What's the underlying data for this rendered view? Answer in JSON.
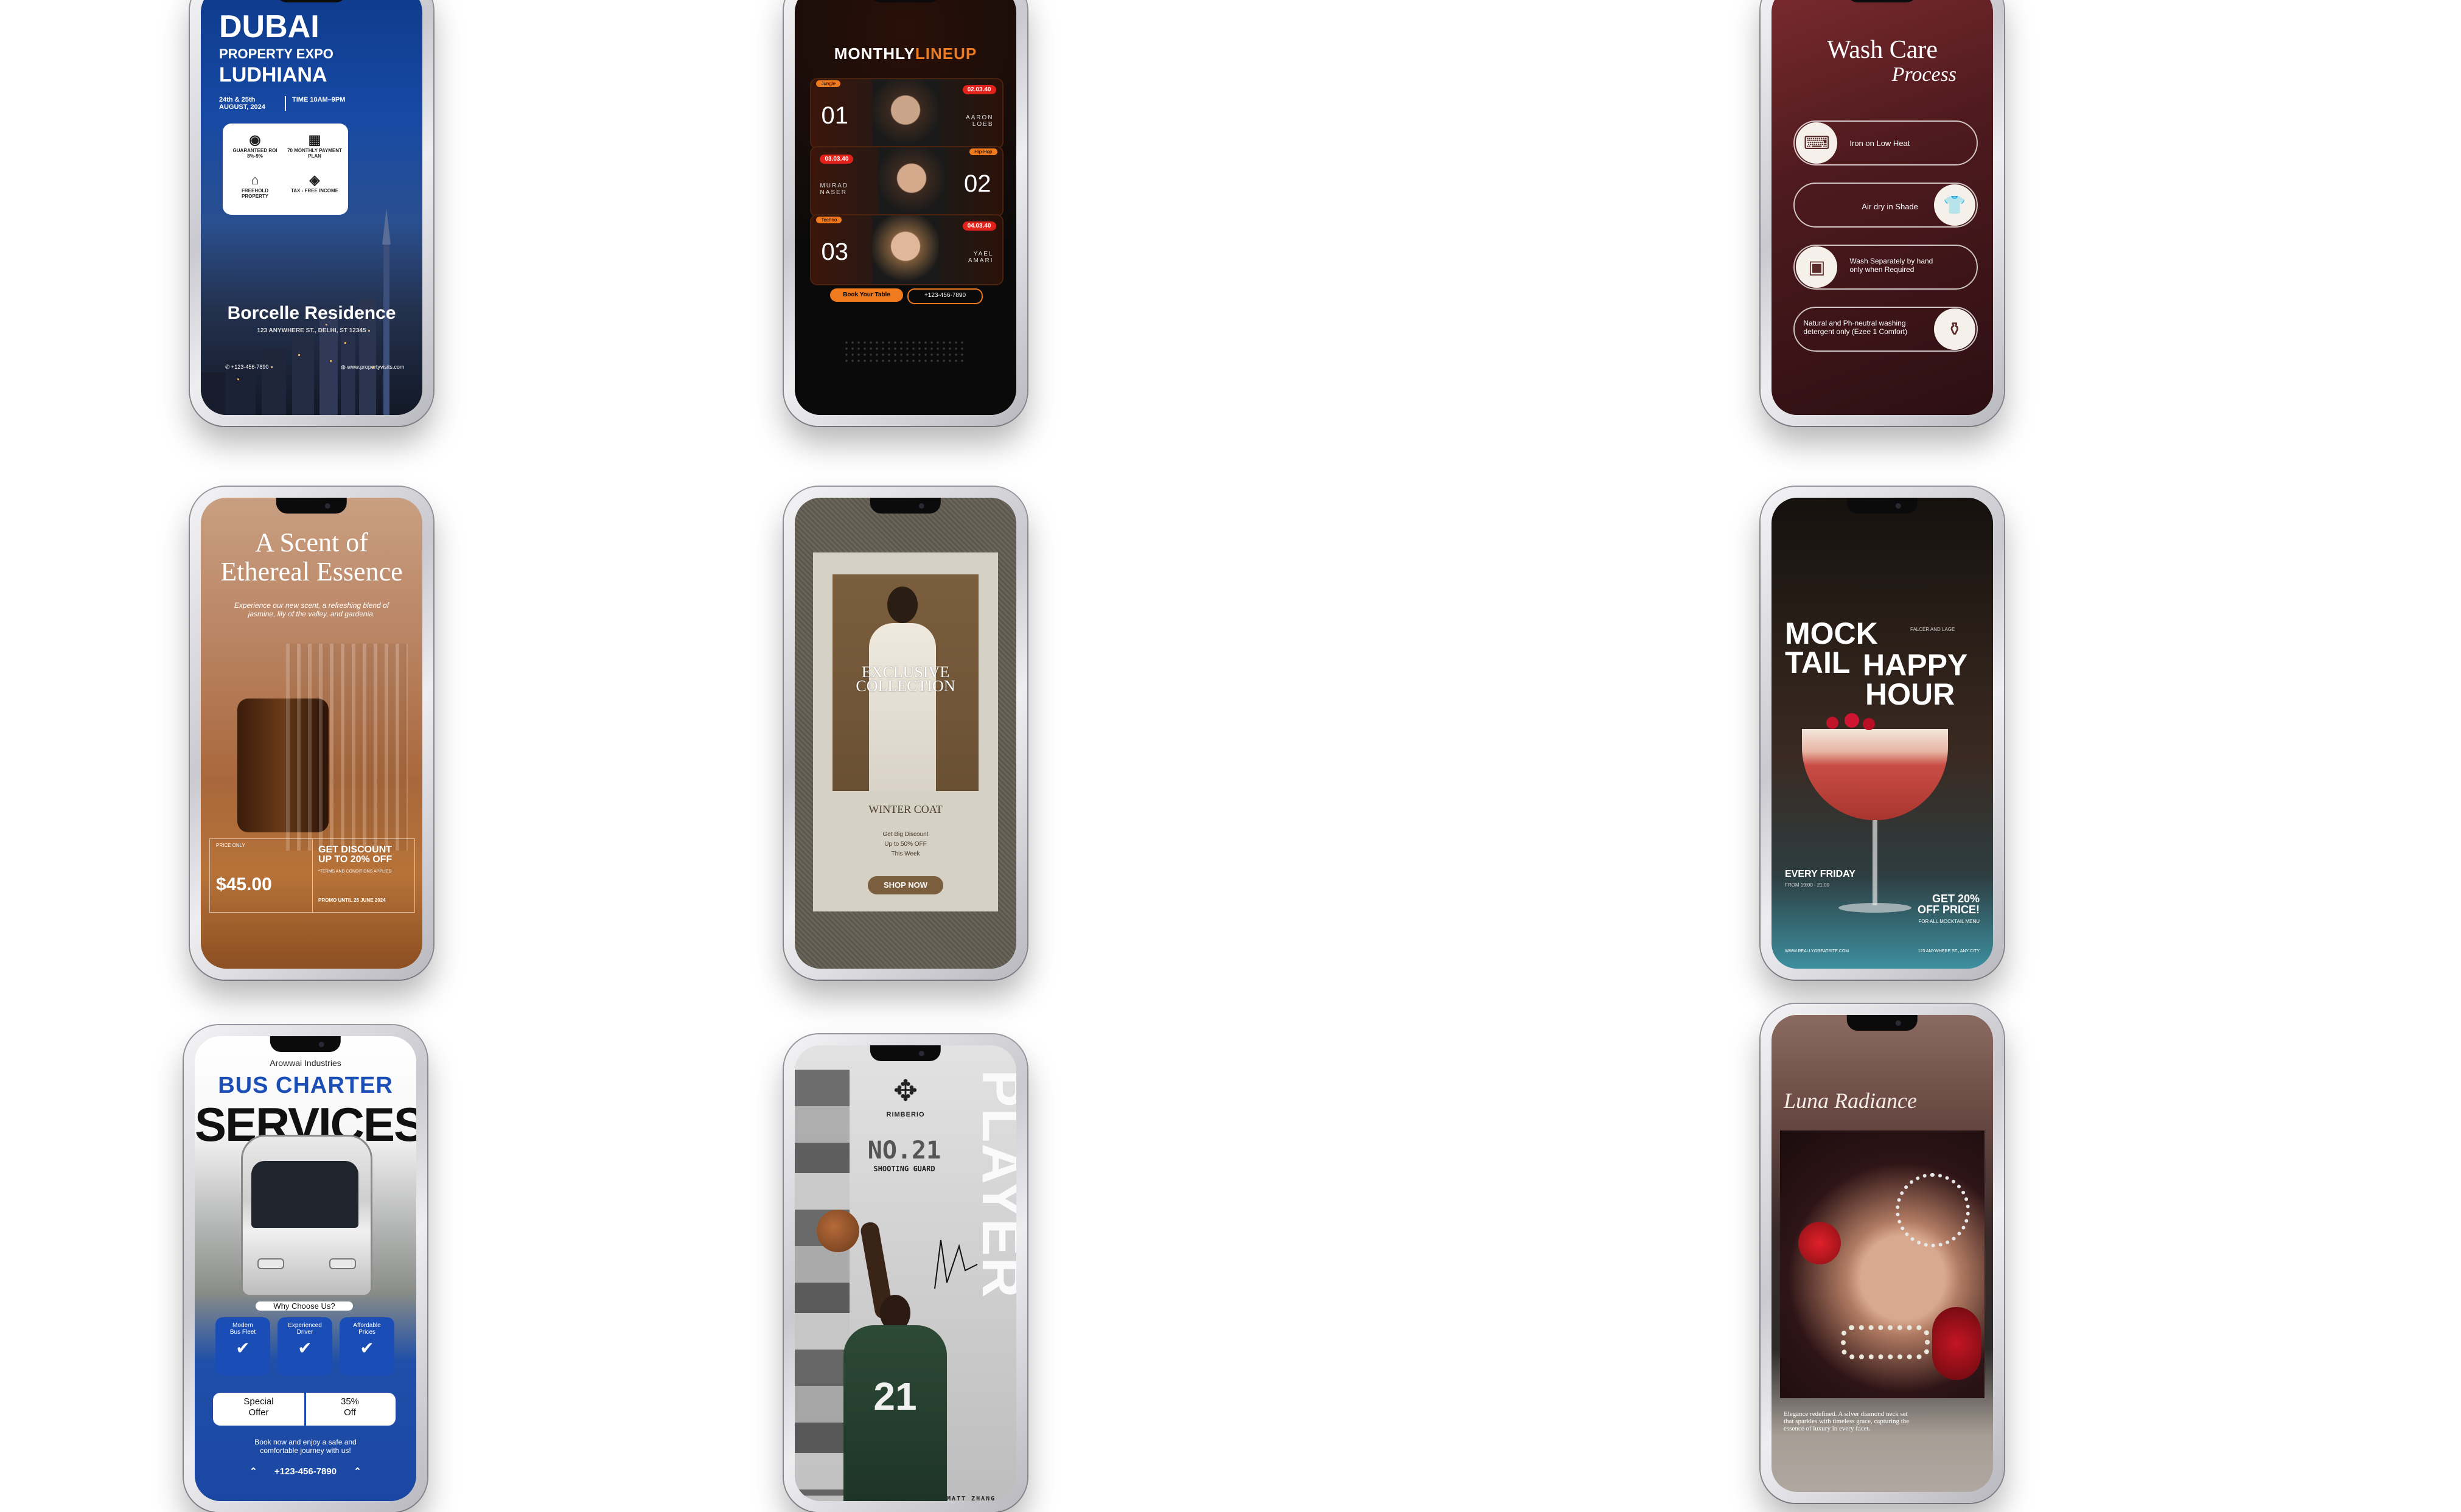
{
  "cards": {
    "dubai": {
      "title1": "DUBAI",
      "title2": "PROPERTY EXPO",
      "title3": "LUDHIANA",
      "date": "24th & 25th AUGUST, 2024",
      "time": "TIME 10AM–9PM",
      "feat1": "GUARANTEED ROI 8%-9%",
      "feat2": "70 MONTHLY PAYMENT PLAN",
      "feat3": "FREEHOLD PROPERTY",
      "feat4": "TAX - FREE INCOME",
      "residence": "Borcelle Residence",
      "address": "123 ANYWHERE ST., DELHI, ST 12345",
      "phone": "+123-456-7890",
      "website": "www.propertyvisits.com"
    },
    "lineup": {
      "title_a": "MONTHLY",
      "title_b": "LINEUP",
      "n1": "01",
      "name1": "AARON LOEB",
      "time1": "02.03.40",
      "tag1": "Jungle",
      "n2": "02",
      "name2": "MURAD NASER",
      "time2": "03.03.40",
      "tag2": "Hip-Hop",
      "n3": "03",
      "name3": "YAEL AMARI",
      "time3": "04.03.40",
      "tag3": "Techno",
      "cta": "Book Your Table",
      "phone": "+123-456-7890"
    },
    "wash": {
      "title": "Wash Care",
      "subtitle": "Process",
      "step1": "Iron on Low Heat",
      "step2": "Air dry in Shade",
      "step3a": "Wash Separately by hand",
      "step3b": "only when Required",
      "step4a": "Natural and Ph-neutral washing",
      "step4b": "detergent only (Ezee 1 Comfort)"
    },
    "scent": {
      "title1": "A Scent of",
      "title2": "Ethereal Essence",
      "desc1": "Experience our new scent, a refreshing blend of",
      "desc2": "jasmine, lily of the valley, and gardenia.",
      "price_label": "PRICE ONLY",
      "price": "$45.00",
      "discount1": "GET DISCOUNT",
      "discount2": "UP TO 20% OFF",
      "terms": "*TERMS AND CONDITIONS APPLIED",
      "promo": "PROMO UNTIL 25 JUNE 2024"
    },
    "coat": {
      "title1": "EXCLUSIVE",
      "title2": "COLLECTION",
      "product": "WINTER COAT",
      "line1": "Get Big Discount",
      "line2": "Up to 50% OFF",
      "line3": "This Week",
      "cta": "SHOP NOW"
    },
    "mock": {
      "t1": "MOCK",
      "t2": "TAIL",
      "t3": "HAPPY",
      "t4": "HOUR",
      "brand": "FALCER AND LAGE",
      "every": "EVERY FRIDAY",
      "hours": "FROM 19:00 - 21:00",
      "get1": "GET 20%",
      "get2": "OFF PRICE!",
      "forall": "FOR ALL MOCKTAIL MENU",
      "site": "WWW.REALLYGREATSITE.COM",
      "addr": "123 ANYWHERE ST., ANY CITY"
    },
    "bus": {
      "company": "Arowwai Industries",
      "title1": "BUS CHARTER",
      "title2": "SERVICES",
      "why": "Why Choose Us?",
      "f1a": "Modern",
      "f1b": "Bus Fleet",
      "f2a": "Experienced",
      "f2b": "Driver",
      "f3a": "Affordable",
      "f3b": "Prices",
      "special1": "Special",
      "special2": "Offer",
      "pct1": "35%",
      "pct2": "Off",
      "book1": "Book now and enjoy a safe and",
      "book2": "comfortable journey with us!",
      "phone": "+123-456-7890"
    },
    "player": {
      "brand": "RIMBERIO",
      "number": "NO.21",
      "position": "SHOOTING GUARD",
      "side": "PLAYER",
      "jersey": "21",
      "name": "MATT ZHANG"
    },
    "luna": {
      "title": "Luna Radiance",
      "desc1": "Elegance redefined. A silver diamond neck set",
      "desc2": "that sparkles with timeless grace, capturing the",
      "desc3": "essence of luxury in every facet."
    }
  },
  "colors": {
    "brand_blue": "#1547b4",
    "lineup_orange": "#f07a1e",
    "lineup_red": "#e3231b",
    "bus_blue": "#1a4db5"
  }
}
